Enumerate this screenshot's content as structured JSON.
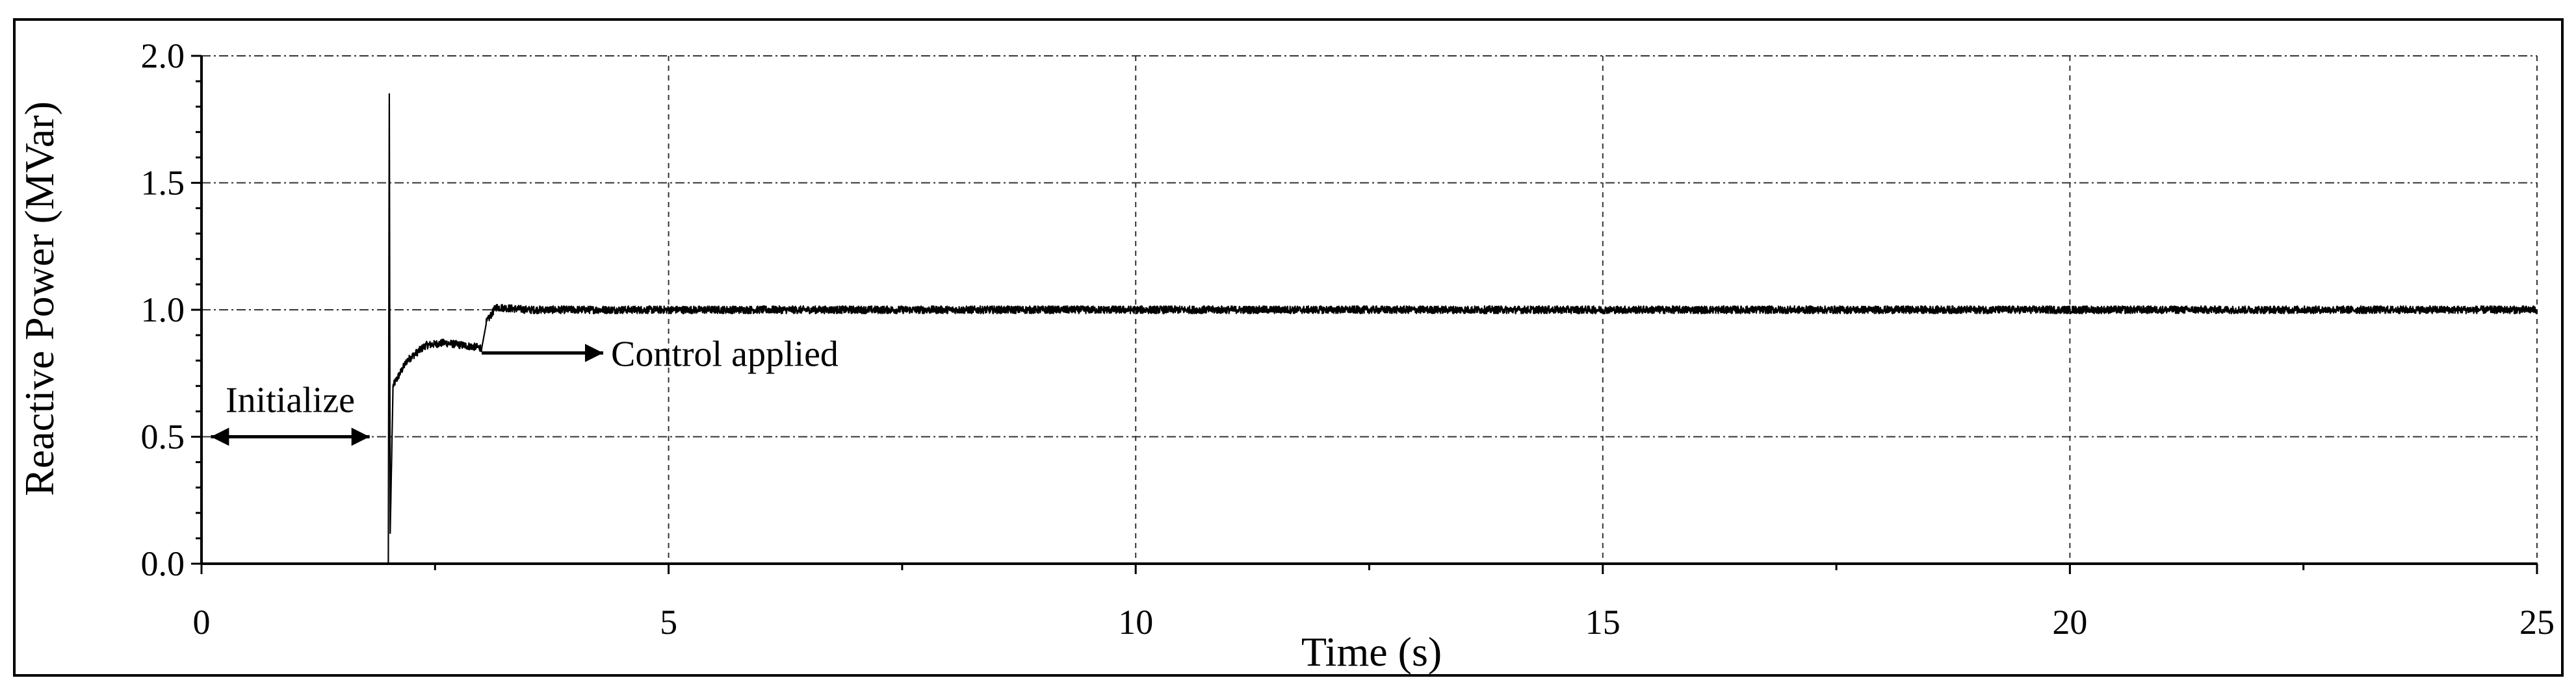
{
  "chart_data": {
    "type": "line",
    "title": "",
    "xlabel": "Time (s)",
    "ylabel": "Reactive Power (MVar)",
    "xlim": [
      0,
      25
    ],
    "ylim": [
      0,
      2
    ],
    "x_ticks": [
      0,
      5,
      10,
      15,
      20,
      25
    ],
    "x_tick_labels": [
      "0",
      "5",
      "10",
      "15",
      "20",
      "25"
    ],
    "y_ticks": [
      0,
      0.5,
      1.0,
      1.5,
      2.0
    ],
    "y_tick_labels": [
      "0.0",
      "0.5",
      "1.0",
      "1.5",
      "2.0"
    ],
    "grid": true,
    "legend": "none",
    "series": [
      {
        "color": "#000000",
        "points": [
          [
            0,
            0.0
          ],
          [
            1.9,
            0.0
          ],
          [
            2.0,
            0.0
          ],
          [
            2.01,
            1.85
          ],
          [
            2.02,
            0.12
          ],
          [
            2.05,
            0.7
          ],
          [
            2.2,
            0.8
          ],
          [
            2.4,
            0.86
          ],
          [
            2.6,
            0.87
          ],
          [
            2.8,
            0.86
          ],
          [
            3.0,
            0.85
          ],
          [
            3.05,
            0.95
          ],
          [
            3.15,
            1.01
          ],
          [
            3.5,
            1.0
          ],
          [
            5,
            1.0
          ],
          [
            10,
            1.0
          ],
          [
            15,
            1.0
          ],
          [
            20,
            1.0
          ],
          [
            25,
            1.0
          ]
        ],
        "noise_amplitude": 0.015
      }
    ],
    "annotations": [
      {
        "text": "Initialize",
        "arrow": "double",
        "x_from": 0.1,
        "x_to": 1.8,
        "y": 0.5
      },
      {
        "text": "Control applied",
        "arrow": "right",
        "x_from": 3.0,
        "x_to": 4.3,
        "y": 0.83
      }
    ]
  }
}
